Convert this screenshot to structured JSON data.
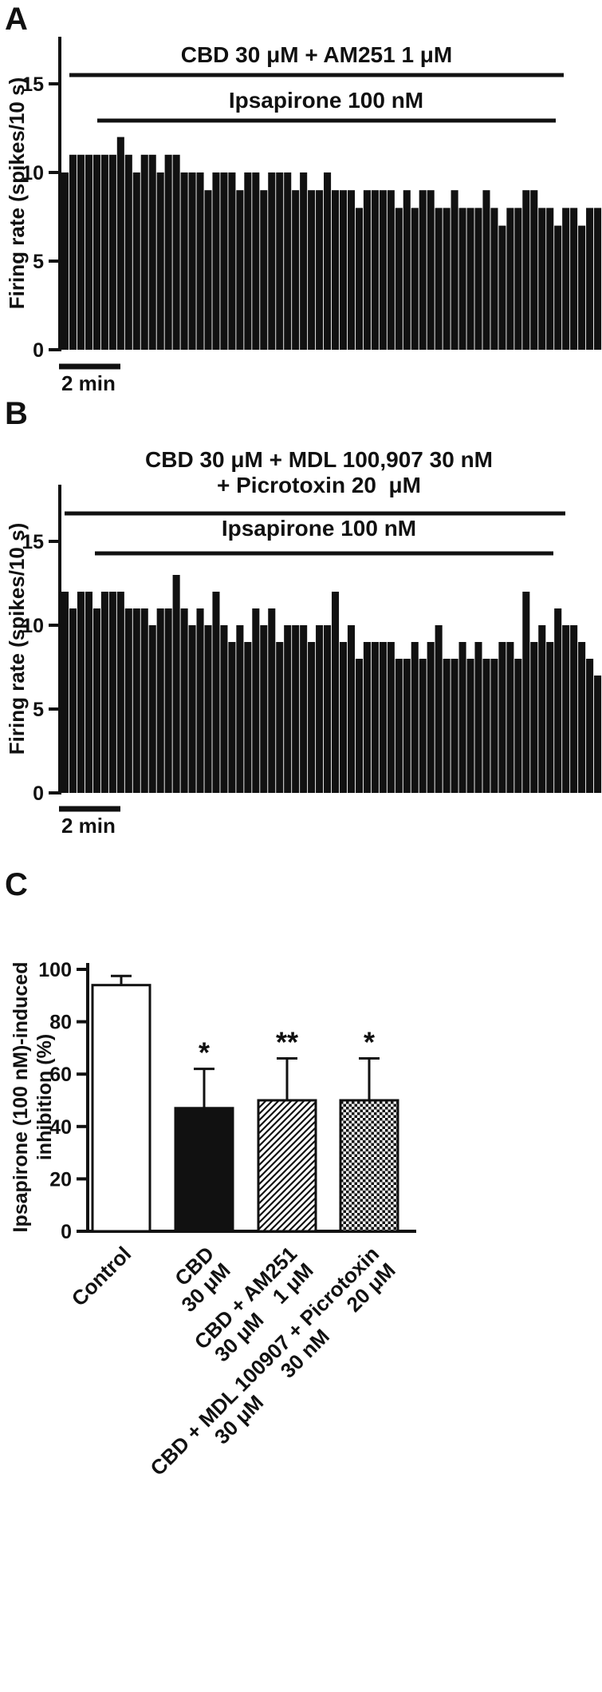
{
  "colors": {
    "ink": "#111111",
    "background": "#ffffff"
  },
  "chart_data": [
    {
      "id": "panel-a",
      "panel_label": "A",
      "type": "bar",
      "subtype": "firing-rate-histogram",
      "ylabel": "Firing rate (spikes/10 s)",
      "yticks": [
        0,
        5,
        10,
        15
      ],
      "ylim": [
        0,
        17.5
      ],
      "bin_duration": "10 s",
      "scale_bar": "2 min",
      "treatments": [
        {
          "label_lines": [
            "CBD 30 μM + AM251 1 μM"
          ]
        },
        {
          "label_lines": [
            "Ipsapirone 100 nM"
          ]
        }
      ],
      "values": [
        10,
        11,
        11,
        11,
        11,
        11,
        11,
        12,
        11,
        10,
        11,
        11,
        10,
        11,
        11,
        10,
        10,
        10,
        9,
        10,
        10,
        10,
        9,
        10,
        10,
        9,
        10,
        10,
        10,
        9,
        10,
        9,
        9,
        10,
        9,
        9,
        9,
        8,
        9,
        9,
        9,
        9,
        8,
        9,
        8,
        9,
        9,
        8,
        8,
        9,
        8,
        8,
        8,
        9,
        8,
        7,
        8,
        8,
        9,
        9,
        8,
        8,
        7,
        8,
        8,
        7,
        8,
        8
      ]
    },
    {
      "id": "panel-b",
      "panel_label": "B",
      "type": "bar",
      "subtype": "firing-rate-histogram",
      "ylabel": "Firing rate (spikes/10 s)",
      "yticks": [
        0,
        5,
        10,
        15
      ],
      "ylim": [
        0,
        17.5
      ],
      "bin_duration": "10 s",
      "scale_bar": "2 min",
      "treatments": [
        {
          "label_lines": [
            "CBD 30 μM + MDL 100,907 30 nM",
            "+ Picrotoxin 20  μM"
          ]
        },
        {
          "label_lines": [
            "Ipsapirone 100 nM"
          ]
        }
      ],
      "values": [
        12,
        11,
        12,
        12,
        11,
        12,
        12,
        12,
        11,
        11,
        11,
        10,
        11,
        11,
        13,
        11,
        10,
        11,
        10,
        12,
        10,
        9,
        10,
        9,
        11,
        10,
        11,
        9,
        10,
        10,
        10,
        9,
        10,
        10,
        12,
        9,
        10,
        8,
        9,
        9,
        9,
        9,
        8,
        8,
        9,
        8,
        9,
        10,
        8,
        8,
        9,
        8,
        9,
        8,
        8,
        9,
        9,
        8,
        12,
        9,
        10,
        9,
        11,
        10,
        10,
        9,
        8,
        7
      ]
    },
    {
      "id": "panel-c",
      "panel_label": "C",
      "type": "bar",
      "subtype": "grouped-summary-bars",
      "ylabel_lines": [
        "Ipsapirone (100 nM)-induced",
        "inhibition (%)"
      ],
      "yticks": [
        0,
        20,
        40,
        60,
        80,
        100
      ],
      "ylim": [
        0,
        100
      ],
      "categories": [
        [
          "Control"
        ],
        [
          "CBD",
          "30 μM"
        ],
        [
          "CBD + AM251",
          "30 μM    1 μM"
        ],
        [
          "CBD + MDL 100907 + Picrotoxin",
          "30 μM      30 nM      20 μM"
        ]
      ],
      "values": [
        94,
        47,
        50,
        50
      ],
      "errors": [
        3.5,
        15,
        16,
        16
      ],
      "significance": [
        "",
        "*",
        "**",
        "*"
      ],
      "bar_styles": [
        "open",
        "solid",
        "diagonal-hatch",
        "checkerboard"
      ]
    }
  ]
}
